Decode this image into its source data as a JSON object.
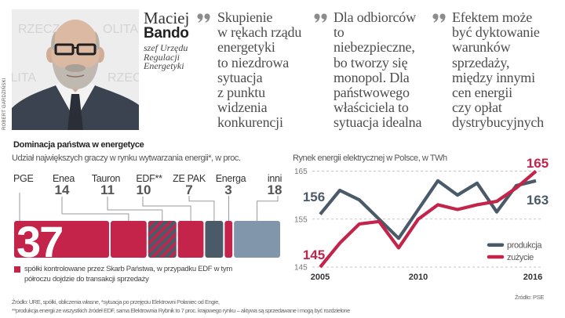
{
  "speaker": {
    "first_name": "Maciej",
    "last_name": "Bando",
    "role": "szef Urzędu\nRegulacji\nEnergetyki"
  },
  "photo": {
    "credit": "ROBERT GARDZIŃSKI",
    "watermark_fragments": [
      "RZECZ",
      "OLITA",
      "OLITA",
      "RZECZ"
    ]
  },
  "quotes": [
    {
      "text": "Skupienie\nw rękach rządu\nenergetyki\nto niezdrowa\nsytuacja\nz punktu\nwidzenia\nkonkurencji"
    },
    {
      "text": "Dla odbiorców\nto\nniebezpieczne,\nbo tworzy się\nmonopol. Dla\npaństwowego\nwłaściciela to\nsytuacja idealna"
    },
    {
      "text": "Efektem może\nbyć dyktowanie\nwarunków\nsprzedaży,\nmiędzy innymi\ncen energii\nczy opłat\ndystrybucyjnych"
    }
  ],
  "colors": {
    "state_red": "#c4234a",
    "private_dark": "#4b5a68",
    "other_gray": "#8195ab",
    "produkcja": "#4b5a68",
    "zuzycie": "#c4234a",
    "quote_mark": "#8c8c8c"
  },
  "footnotes": [
    "Źródło: URE, spółki, obliczenia własne, *sytuacja po przejęciu Elektrowni Połaniec od Engie,",
    "**produkcja energii ze wszystkich źródeł EDF,  sama Elektrownia Rybnik to 7 proc. krajowego rynku – aktywa są sprzedawane i mogą być rozdzielone"
  ],
  "chart_data": [
    {
      "type": "bar",
      "orientation": "horizontal-stacked",
      "title": "Dominacja państwa w energetyce",
      "subtitle": "Udział największych graczy w rynku wytwarzania energii*, w proc.",
      "categories": [
        "PGE",
        "Enea",
        "Tauron",
        "EDF**",
        "ZE PAK",
        "Energa",
        "inni"
      ],
      "values": [
        37,
        14,
        11,
        10,
        7,
        3,
        18
      ],
      "fills": [
        "state",
        "state",
        "striped",
        "state",
        "private",
        "state",
        "other"
      ],
      "unit": "%",
      "legend": [
        {
          "color": "state",
          "label": "spółki kontrolowane przez Skarb Państwa, w przypadku EDF w tym\npółroczu dojdzie do transakcji sprzedaży"
        }
      ],
      "legend_position": "bottom-left"
    },
    {
      "type": "line",
      "title": "Rynek energii elektrycznej w Polsce, w TWh",
      "x": [
        2005,
        2006,
        2007,
        2008,
        2009,
        2010,
        2011,
        2012,
        2013,
        2014,
        2015,
        2016
      ],
      "series": [
        {
          "name": "produkcja",
          "color": "produkcja",
          "values": [
            156,
            161,
            159,
            155,
            151,
            157,
            163,
            160,
            162.5,
            156.5,
            162,
            163
          ]
        },
        {
          "name": "zużycie",
          "color": "zuzycie",
          "values": [
            145,
            150,
            154,
            154.5,
            149,
            155,
            158,
            157,
            158,
            158.7,
            161.5,
            165
          ]
        }
      ],
      "ylim": [
        145,
        165
      ],
      "yticks": [
        145,
        155,
        165
      ],
      "xticks": [
        2005,
        2010,
        2016
      ],
      "grid": "horizontal dashed",
      "legend_position": "bottom-right",
      "annotations": [
        {
          "series": "produkcja",
          "x": 2005,
          "label": "156"
        },
        {
          "series": "zużycie",
          "x": 2005,
          "label": "145"
        },
        {
          "series": "zużycie",
          "x": 2016,
          "label": "165"
        },
        {
          "series": "produkcja",
          "x": 2016,
          "label": "163"
        }
      ],
      "source": "Źródło: PSE"
    }
  ]
}
